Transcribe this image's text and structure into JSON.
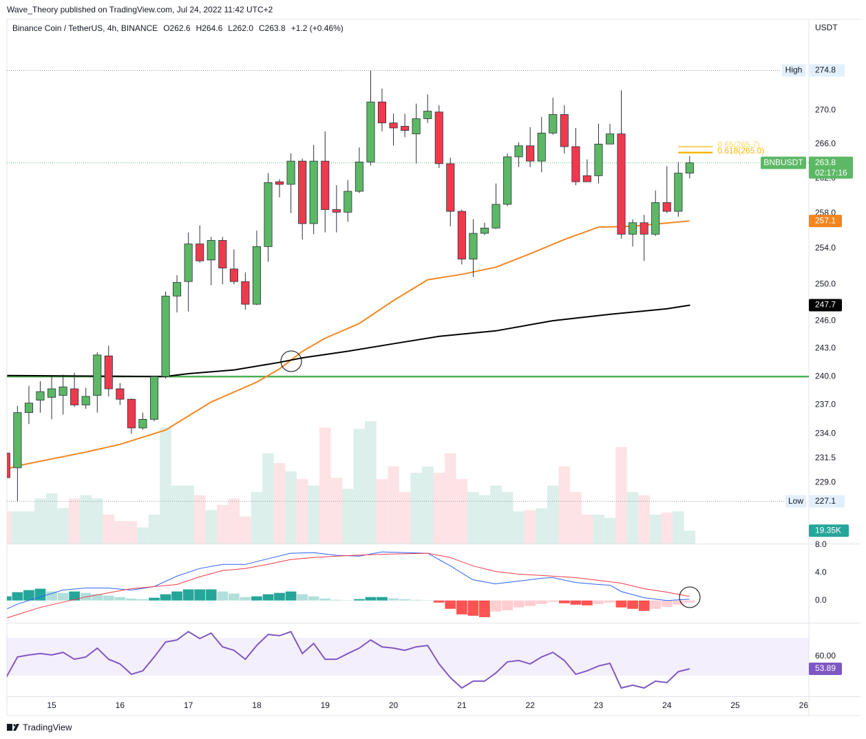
{
  "header": "Wave_Theory published on TradingView.com, Jul 24, 2022 11:42 UTC+2",
  "footer": "TradingView",
  "chart_data": {
    "type": "candlestick",
    "title": "Binance Coin / TetherUS, 4h, BINANCE",
    "ohlc_labels": [
      "O262.6",
      "H264.6",
      "L262.0",
      "C263.8",
      "+1.2 (+0.46%)"
    ],
    "currency": "USDT",
    "up_color": "#5cb865",
    "down_color": "#ef3a4e",
    "log_scale": true,
    "grid": false,
    "xlim": [
      14.345,
      26.077
    ],
    "xticks": [
      15,
      16,
      17,
      18,
      19,
      20,
      21,
      22,
      23,
      24,
      25,
      26
    ],
    "ylim": [
      222.9,
      281.1
    ],
    "yticks": [
      {
        "value": 229,
        "label": "229.0"
      },
      231.5,
      {
        "value": 234,
        "label": "234.0"
      },
      {
        "value": 237,
        "label": "237.0"
      },
      {
        "value": 240,
        "label": "240.0"
      },
      {
        "value": 243,
        "label": "243.0"
      },
      {
        "value": 246,
        "label": "246.0"
      },
      {
        "value": 250,
        "label": "250.0"
      },
      {
        "value": 254,
        "label": "254.0"
      },
      {
        "value": 258,
        "label": "258.0"
      },
      {
        "value": 262,
        "label": "262.0"
      },
      {
        "value": 266,
        "label": "266.0"
      },
      {
        "value": 270,
        "label": "270.0"
      }
    ],
    "x": [
      14.333,
      14.5,
      14.667,
      14.833,
      15,
      15.167,
      15.333,
      15.5,
      15.667,
      15.833,
      16,
      16.167,
      16.333,
      16.5,
      16.667,
      16.833,
      17,
      17.167,
      17.333,
      17.5,
      17.667,
      17.833,
      18,
      18.167,
      18.333,
      18.5,
      18.667,
      18.833,
      19,
      19.167,
      19.333,
      19.5,
      19.667,
      19.833,
      20,
      20.167,
      20.333,
      20.5,
      20.667,
      20.833,
      21,
      21.167,
      21.333,
      21.5,
      21.667,
      21.833,
      22,
      22.167,
      22.333,
      22.5,
      22.667,
      22.833,
      23,
      23.167,
      23.333,
      23.5,
      23.667,
      23.833,
      24,
      24.167,
      24.333
    ],
    "open": [
      232,
      230.5,
      236.2,
      237.5,
      237.8,
      238,
      238.7,
      237,
      238,
      242.2,
      238.7,
      237.6,
      234.6,
      235.5,
      240,
      248.7,
      250.3,
      254.5,
      252.7,
      254.9,
      251.7,
      250.3,
      247.8,
      254.2,
      261.6,
      261.3,
      264,
      256.8,
      264,
      258.4,
      258.1,
      260.5,
      263.9,
      271,
      268.5,
      268.1,
      267.2,
      269,
      269.8,
      263.7,
      258.2,
      252.8,
      255.7,
      256.3,
      259,
      264.5,
      265.8,
      264,
      267.3,
      269.5,
      265.7,
      262.3,
      262.3,
      266,
      267.2,
      255.6,
      256.9,
      255.6,
      259.2,
      258.2,
      262.6
    ],
    "high": [
      232.5,
      236.9,
      239,
      239.5,
      240,
      240.2,
      240.4,
      238.8,
      242.6,
      243.3,
      239.3,
      237.7,
      236.2,
      240.1,
      249.2,
      251,
      255.8,
      256.6,
      255.3,
      255.3,
      253.9,
      251.3,
      256,
      262.6,
      261.9,
      264.9,
      264.3,
      265.9,
      267.5,
      261.2,
      261.8,
      265.6,
      274.8,
      272.6,
      269.6,
      269.6,
      270.8,
      271.9,
      270.6,
      264.4,
      258.4,
      257.3,
      256.9,
      261.4,
      264.9,
      266.2,
      268,
      269.2,
      271.5,
      270.6,
      267.9,
      264.2,
      268.4,
      268.4,
      272.4,
      257.3,
      257.8,
      260.6,
      263.4,
      263.9,
      264.6
    ],
    "low": [
      228,
      227.1,
      235,
      236.2,
      235.5,
      236,
      236.8,
      236.6,
      236.2,
      237.9,
      237,
      234,
      234.4,
      235.3,
      239.8,
      246.9,
      247,
      252.4,
      249.9,
      250,
      250,
      247.2,
      247.7,
      252.5,
      259.8,
      258,
      255,
      255.6,
      255.8,
      255.8,
      257,
      260.3,
      263.5,
      267.5,
      265.8,
      266.8,
      263.7,
      268.5,
      263.2,
      256.5,
      252.2,
      250.8,
      255.5,
      256.2,
      258.8,
      263.3,
      263.3,
      262.7,
      267.1,
      264.9,
      261.2,
      261.6,
      261.4,
      266,
      255.1,
      254.2,
      252.6,
      255.4,
      258,
      257.6,
      262
    ],
    "close": [
      229.5,
      236.2,
      237.2,
      238.4,
      238.7,
      238.9,
      237,
      237.9,
      242.3,
      238.7,
      237.6,
      234.6,
      235.5,
      240,
      248.7,
      250.2,
      254.5,
      252.6,
      254.9,
      251.8,
      250.3,
      247.8,
      254.2,
      261.5,
      261.3,
      264,
      256.8,
      264,
      258.4,
      258.1,
      260.5,
      263.9,
      271,
      268.5,
      267.9,
      267.6,
      269,
      269.9,
      263.7,
      258.2,
      252.8,
      255.7,
      256.3,
      259,
      264.5,
      265.8,
      264,
      267.3,
      269.5,
      265.7,
      261.6,
      261.6,
      266,
      267.2,
      255.6,
      256.9,
      255.6,
      259.2,
      258.2,
      262.6,
      263.8
    ],
    "overlays": [
      {
        "color": "#f5861f",
        "x": [
          14.35,
          14.5,
          15.49,
          16,
          16.67,
          17.33,
          18,
          18.33,
          18.67,
          19,
          19.5,
          20,
          20.5,
          21,
          21.5,
          22,
          22.5,
          23,
          23.5,
          24.33
        ],
        "values": [
          230.4,
          230.7,
          232.1,
          232.9,
          234.4,
          237.3,
          239.4,
          240.8,
          242.7,
          244.1,
          245.7,
          248.2,
          250.5,
          251.1,
          251.9,
          253.4,
          255,
          256.4,
          256.5,
          257.1
        ],
        "tag": {
          "value": 257.1,
          "label": "257.1"
        }
      },
      {
        "color": "#000000",
        "x": [
          14.35,
          15.49,
          16.66,
          16.99,
          17.67,
          18.33,
          18.67,
          19.33,
          19.99,
          20.66,
          21.5,
          22.33,
          23.17,
          24,
          24.34
        ],
        "values": [
          240.1,
          240.05,
          240,
          240.3,
          240.7,
          241.5,
          242,
          242.7,
          243.5,
          244.3,
          244.9,
          246,
          246.7,
          247.3,
          247.7
        ],
        "tag": {
          "value": 247.7,
          "label": "247.7"
        }
      }
    ],
    "hlines": [
      {
        "value": 240,
        "color": "#4caf50"
      }
    ],
    "high_marker": {
      "label": "High",
      "value": 274.8,
      "value_label": "274.8"
    },
    "low_marker": {
      "label": "Low",
      "value": 227.1,
      "value_label": "227.1"
    },
    "last_price": {
      "name": "BNBUSDT",
      "value": 263.8,
      "value_label": "263.8",
      "countdown": "02:17:16",
      "color": "#5cb865"
    },
    "fib": [
      {
        "label": "0.65(265.7)",
        "value": 265.7,
        "color": "#f7d774"
      },
      {
        "label": "0.618(265.0)",
        "value": 265.0,
        "color": "#f5b800"
      }
    ],
    "volume": {
      "up_color": "#dcefeb",
      "down_color": "#fde3e5",
      "tag_color": "#26a69a",
      "values": [
        48.4,
        48.4,
        48.4,
        67.7,
        75.5,
        53.2,
        67.7,
        72.6,
        67.7,
        43.5,
        33.9,
        33.9,
        24.2,
        43.5,
        174.2,
        87.1,
        87.1,
        72.6,
        50.3,
        58.1,
        67.7,
        40.6,
        77.4,
        135.5,
        120.9,
        108.4,
        96.8,
        87.1,
        174.2,
        98.7,
        82.2,
        172.2,
        183.8,
        96.8,
        116.1,
        77.4,
        106.4,
        116.1,
        106.4,
        135.5,
        96.8,
        77.4,
        72.6,
        87.1,
        77.4,
        48.4,
        50.3,
        53.2,
        87.1,
        116.1,
        77.4,
        43.5,
        43.5,
        38.7,
        145.1,
        77.4,
        72.6,
        43.5,
        46.4,
        48.4,
        19.35
      ],
      "value_label": "19.35K"
    },
    "macd": {
      "ylim": [
        -3.2,
        8.2
      ],
      "yticks": [
        {
          "value": 8,
          "label": "8.0"
        },
        {
          "value": 4,
          "label": "4.0"
        },
        {
          "value": 0,
          "label": "0.0"
        }
      ],
      "hist_colors": [
        "#26a69a",
        "#b2dfdb",
        "#ff5252",
        "#ffcdd2"
      ],
      "histogram": [
        0.6,
        1.2,
        1.5,
        1.7,
        1.3,
        1.1,
        1.3,
        1.1,
        0.9,
        0.7,
        0.5,
        0.3,
        0.2,
        0.4,
        0.9,
        1.3,
        1.6,
        1.6,
        1.6,
        1.3,
        1.0,
        0.5,
        0.6,
        0.9,
        1.1,
        1.3,
        0.9,
        0.6,
        0.3,
        0.1,
        0.05,
        0.2,
        0.5,
        0.5,
        0.3,
        0.2,
        0.1,
        0.05,
        -0.3,
        -1.2,
        -2.0,
        -2.2,
        -2.4,
        -1.6,
        -1.4,
        -1.0,
        -0.8,
        -0.5,
        -0.2,
        -0.4,
        -0.6,
        -0.7,
        -0.5,
        -0.3,
        -1.0,
        -1.2,
        -1.5,
        -1.2,
        -0.9,
        -0.6,
        -0.3
      ],
      "macd": {
        "color": "#2962ff",
        "x": [
          14.35,
          14.5,
          14.83,
          15.16,
          15.49,
          15.83,
          16.16,
          16.5,
          16.83,
          17.16,
          17.5,
          17.83,
          18.16,
          18.49,
          18.83,
          19.17,
          19.5,
          19.83,
          20.17,
          20.5,
          20.83,
          21.16,
          21.49,
          21.83,
          22.17,
          22.33,
          22.66,
          23,
          23.17,
          23.33,
          23.67,
          24,
          24.33
        ],
        "values": [
          -1.2,
          -0.5,
          0.5,
          1.5,
          1.8,
          1.8,
          1.5,
          2.0,
          3.5,
          4.6,
          5.2,
          5.2,
          6.0,
          6.8,
          6.9,
          6.5,
          6.4,
          7.0,
          6.9,
          6.8,
          5.0,
          3.0,
          2.4,
          2.8,
          3.2,
          3.3,
          2.6,
          2.3,
          2.2,
          1.3,
          0.4,
          0.0,
          0.2
        ]
      },
      "signal": {
        "color": "#f23645",
        "x": [
          14.35,
          14.83,
          15.49,
          16.16,
          16.83,
          17.16,
          17.5,
          17.83,
          18.16,
          18.49,
          18.83,
          19.17,
          19.66,
          19.99,
          20.5,
          20.83,
          21.16,
          21.49,
          21.83,
          22.17,
          22.66,
          23,
          23.33,
          23.67,
          24,
          24.33
        ],
        "values": [
          -2.5,
          -1.0,
          0.5,
          1.7,
          2.3,
          3.4,
          4.3,
          4.6,
          5.2,
          5.9,
          6.2,
          6.4,
          6.6,
          6.7,
          6.8,
          6.2,
          5.0,
          4.2,
          3.8,
          3.6,
          3.3,
          2.9,
          2.5,
          1.7,
          1.2,
          0.6
        ]
      }
    },
    "rsi": {
      "ylim": [
        40.3,
        75.6
      ],
      "yticks": [
        {
          "value": 60,
          "label": "60.00"
        }
      ],
      "color": "#7e57c2",
      "values": [
        49.5,
        59.7,
        60.7,
        61.4,
        60.7,
        62,
        58.6,
        59.7,
        64.1,
        58.6,
        56.3,
        51.2,
        52.9,
        59.7,
        67.1,
        68.1,
        72.2,
        68.8,
        71.5,
        64.7,
        63,
        58.6,
        65.4,
        70.8,
        70.2,
        72.2,
        61.4,
        66.4,
        58.6,
        58.6,
        61.4,
        64.1,
        68.1,
        64.7,
        64.1,
        63,
        64.7,
        65.4,
        56.3,
        49.5,
        44.4,
        47.8,
        47.8,
        51.9,
        57.3,
        58,
        56.3,
        59.7,
        62,
        58,
        51.2,
        52.9,
        55.3,
        56.6,
        44.4,
        45.8,
        44.4,
        47.8,
        47.1,
        52.5,
        53.89
      ],
      "value_label": "53.89"
    }
  }
}
